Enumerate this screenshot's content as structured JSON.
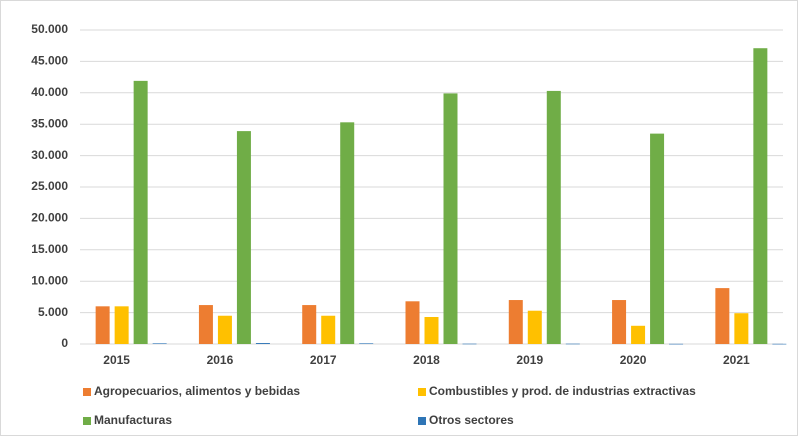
{
  "chart_data": {
    "type": "bar",
    "categories": [
      "2015",
      "2016",
      "2017",
      "2018",
      "2019",
      "2020",
      "2021"
    ],
    "series": [
      {
        "name": "Agropecuarios, alimentos y bebidas",
        "color": "#ed7d31",
        "values": [
          6000,
          6200,
          6200,
          6800,
          7000,
          7000,
          8900
        ]
      },
      {
        "name": "Combustibles y prod. de industrias extractivas",
        "color": "#ffc000",
        "values": [
          6000,
          4500,
          4500,
          4300,
          5300,
          2900,
          4900
        ]
      },
      {
        "name": "Manufacturas",
        "color": "#70ad47",
        "values": [
          41900,
          33900,
          35300,
          39900,
          40300,
          33500,
          47100
        ]
      },
      {
        "name": "Otros sectores",
        "color": "#2e75b6",
        "values": [
          100,
          150,
          100,
          50,
          50,
          30,
          30
        ]
      }
    ],
    "ylim": [
      0,
      50000
    ],
    "yticks": [
      0,
      {
        "value": 5000,
        "label": "5.000"
      },
      {
        "value": 10000,
        "label": "10.000"
      },
      {
        "value": 15000,
        "label": "15.000"
      },
      {
        "value": 20000,
        "label": "20.000"
      },
      {
        "value": 25000,
        "label": "25.000"
      },
      {
        "value": 30000,
        "label": "30.000"
      },
      {
        "value": 35000,
        "label": "35.000"
      },
      {
        "value": 40000,
        "label": "40.000"
      },
      {
        "value": 45000,
        "label": "45.000"
      },
      {
        "value": 50000,
        "label": "50.000"
      }
    ],
    "grid": true
  }
}
